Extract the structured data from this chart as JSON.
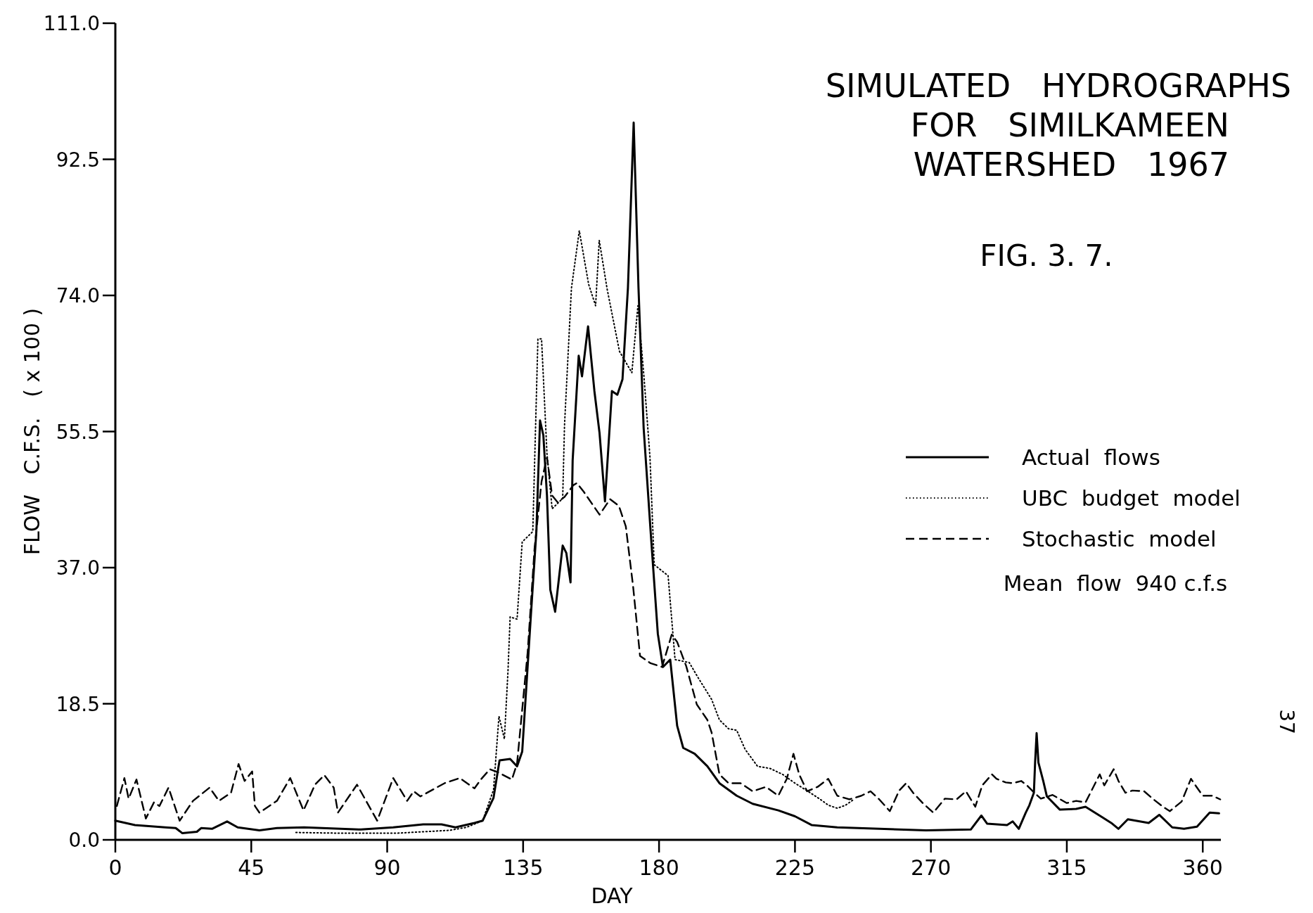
{
  "chart_data": {
    "type": "line",
    "title": "SIMULATED   HYDROGRAPHS\nFOR   SIMILKAMEEN\nWATERSHED   1967",
    "xlabel": "DAY",
    "ylabel": "FLOW   C.F.S.   ( x 100 )",
    "annotations": [
      "FIG. 3. 7.",
      "Mean  flow  940 c.f.s",
      "37"
    ],
    "xlim": [
      0,
      366
    ],
    "xticks": [
      0,
      45,
      90,
      135,
      180,
      225,
      270,
      315,
      360
    ],
    "ylim": [
      0,
      111
    ],
    "yticks": [
      {
        "value": 0,
        "label": "0.0"
      },
      18.5,
      {
        "value": 37,
        "label": "37.0"
      },
      55.5,
      {
        "value": 74,
        "label": "74.0"
      },
      92.5,
      {
        "value": 111,
        "label": "111.0"
      }
    ],
    "grid": false,
    "legend": "right",
    "marker": "none",
    "series": [
      {
        "name": "Actual  flows",
        "color": "#000000",
        "line_style": "solid",
        "x": [
          0,
          6.5,
          16.5,
          20,
          22.2,
          27,
          28.4,
          32,
          37,
          40.5,
          47.7,
          53.5,
          62.5,
          81.3,
          92,
          101.9,
          108,
          112.6,
          118.9,
          121.6,
          125.2,
          127.2,
          130.7,
          133,
          134.7,
          137.6,
          139.4,
          140.6,
          141.7,
          142.9,
          144,
          145.6,
          148.1,
          149.3,
          150.7,
          151.4,
          153.4,
          154.5,
          156.5,
          158.6,
          160.3,
          162.1,
          164.4,
          166.2,
          167.9,
          169.7,
          171.6,
          173.2,
          174.9,
          177.2,
          179.6,
          181.3,
          183.7,
          186,
          188,
          191.8,
          196,
          200,
          205.7,
          211,
          219.5,
          225,
          230.6,
          239,
          252.9,
          268.4,
          283.2,
          286.7,
          288.6,
          295.2,
          297.1,
          299.1,
          301.4,
          302.6,
          304.1,
          304.5,
          305,
          305.6,
          307.2,
          308.4,
          312.7,
          318.1,
          321.2,
          326.6,
          329.7,
          332.1,
          335.2,
          342.1,
          345.6,
          349.9,
          353.8,
          358.1,
          362.3,
          365.4
        ],
        "values": [
          2.6,
          2.0,
          1.7,
          1.6,
          0.9,
          1.1,
          1.6,
          1.5,
          2.5,
          1.7,
          1.3,
          1.6,
          1.7,
          1.4,
          1.7,
          2.1,
          2.1,
          1.7,
          2.3,
          2.6,
          5.7,
          10.8,
          11,
          10,
          12,
          30.7,
          42,
          57,
          55,
          46.8,
          34,
          31,
          40,
          39,
          35,
          51.6,
          65.8,
          63,
          69.8,
          61,
          55.3,
          46,
          61,
          60.5,
          62.6,
          75,
          97.5,
          75,
          56,
          42,
          28,
          23.5,
          24.5,
          15.5,
          12.5,
          11.7,
          10,
          7.7,
          6,
          4.9,
          4,
          3.2,
          2,
          1.7,
          1.5,
          1.3,
          1.4,
          3.3,
          2.2,
          2,
          2.5,
          1.5,
          3.7,
          4.7,
          6.4,
          10.5,
          14.5,
          10.5,
          8,
          5.9,
          4.1,
          4.2,
          4.5,
          3.1,
          2.3,
          1.5,
          2.8,
          2.3,
          3.4,
          1.7,
          1.5,
          1.8,
          3.7,
          3.6
        ]
      },
      {
        "name": "UBC  budget  model",
        "color": "#000000",
        "line_style": "dotted",
        "x": [
          59.8,
          75,
          93,
          110.8,
          116.2,
          121.6,
          125.2,
          127,
          128.8,
          130,
          130.7,
          133,
          134.7,
          138.2,
          139.9,
          141.1,
          142.9,
          144.6,
          148.1,
          148.7,
          151,
          153.6,
          156.7,
          159,
          160.2,
          162.8,
          166.9,
          171,
          173,
          175,
          177,
          178.4,
          183,
          185.3,
          190,
          193,
          197.4,
          200,
          203,
          205.7,
          208.5,
          212.6,
          216.8,
          220.9,
          225,
          229.3,
          233.4,
          236.1,
          239,
          241.7,
          244.5
        ],
        "values": [
          1,
          0.9,
          0.9,
          1.3,
          1.7,
          2.6,
          6.8,
          16.8,
          13.7,
          23,
          30.3,
          30,
          40.5,
          41.9,
          68.1,
          68.1,
          52.5,
          45,
          46.4,
          56.3,
          75,
          82.8,
          75.5,
          72.6,
          81.5,
          74.9,
          66.4,
          63.5,
          72.6,
          63,
          52,
          37.4,
          35.9,
          24.5,
          24.1,
          22,
          19.1,
          16.3,
          15.1,
          14.9,
          12.3,
          10,
          9.7,
          8.9,
          7.7,
          6.6,
          5.5,
          4.7,
          4.3,
          4.7,
          5.5
        ]
      },
      {
        "name": "Stochastic  model",
        "color": "#000000",
        "line_style": "dashed",
        "x": [
          0.5,
          3,
          4.4,
          7,
          10.1,
          12.8,
          14.6,
          17.6,
          21.3,
          25.7,
          31.2,
          34.3,
          38.3,
          40.8,
          42.8,
          45.3,
          46.2,
          47.7,
          53.5,
          57.9,
          62.3,
          66.1,
          69.2,
          72.3,
          73.7,
          80,
          86.7,
          92,
          96.6,
          98.8,
          101,
          109,
          114,
          118.9,
          121,
          124,
          126.6,
          131.3,
          133,
          136.5,
          138.8,
          141.1,
          142.9,
          144.6,
          146.4,
          148.7,
          151.6,
          152.8,
          155.1,
          160.3,
          163.8,
          166.7,
          169,
          171.4,
          173.7,
          177.2,
          181,
          184.2,
          186,
          189,
          192.5,
          196,
          197.4,
          200,
          203,
          207,
          211,
          215.4,
          219.5,
          222.3,
          224.5,
          226.4,
          229,
          232.5,
          236,
          239,
          243,
          247,
          250,
          252.9,
          256.4,
          259.5,
          261.8,
          264.1,
          267.3,
          270.8,
          274.6,
          278.5,
          281.6,
          284.7,
          287,
          290.2,
          291.7,
          294.8,
          297.1,
          299.9,
          301.8,
          304.5,
          306.4,
          310.3,
          315,
          318.1,
          321.2,
          325.9,
          327.4,
          330.5,
          332.1,
          334.4,
          336.7,
          340.6,
          343.7,
          346.8,
          349.1,
          353,
          356.1,
          358.1,
          360,
          363.1,
          365.8
        ],
        "values": [
          4.6,
          8.4,
          5.6,
          8.2,
          2.9,
          5.1,
          4.6,
          7.1,
          2.6,
          5.3,
          7.1,
          5.3,
          6.4,
          10.3,
          8,
          9.3,
          4.6,
          3.7,
          5.3,
          8.4,
          4,
          7.5,
          8.8,
          7.1,
          3.7,
          7.5,
          2.6,
          8.4,
          5.3,
          6.6,
          5.9,
          7.7,
          8.4,
          7,
          8.2,
          9.6,
          9.2,
          8.2,
          10.4,
          25.5,
          39.7,
          48.7,
          52,
          46.8,
          45.9,
          46.6,
          48.2,
          48.5,
          47.3,
          44.2,
          46.3,
          45.4,
          42.6,
          34.5,
          25,
          24,
          23.5,
          27.9,
          26.9,
          23.6,
          18.4,
          16.3,
          14.6,
          8.9,
          7.7,
          7.7,
          6.6,
          7.2,
          6,
          8.3,
          11.7,
          8.9,
          6.6,
          7.2,
          8.3,
          6,
          5.5,
          6,
          6.6,
          5.5,
          3.9,
          6.7,
          7.7,
          6.4,
          5,
          3.7,
          5.6,
          5.5,
          6.6,
          4.5,
          7.4,
          8.9,
          8.3,
          7.8,
          7.7,
          8,
          7.4,
          6.3,
          5.6,
          6.1,
          5,
          5.3,
          5.1,
          8.9,
          7.4,
          9.6,
          8,
          6.4,
          6.7,
          6.6,
          5.5,
          4.5,
          3.9,
          5.2,
          8.3,
          7.1,
          6,
          6,
          5.5
        ]
      }
    ]
  }
}
